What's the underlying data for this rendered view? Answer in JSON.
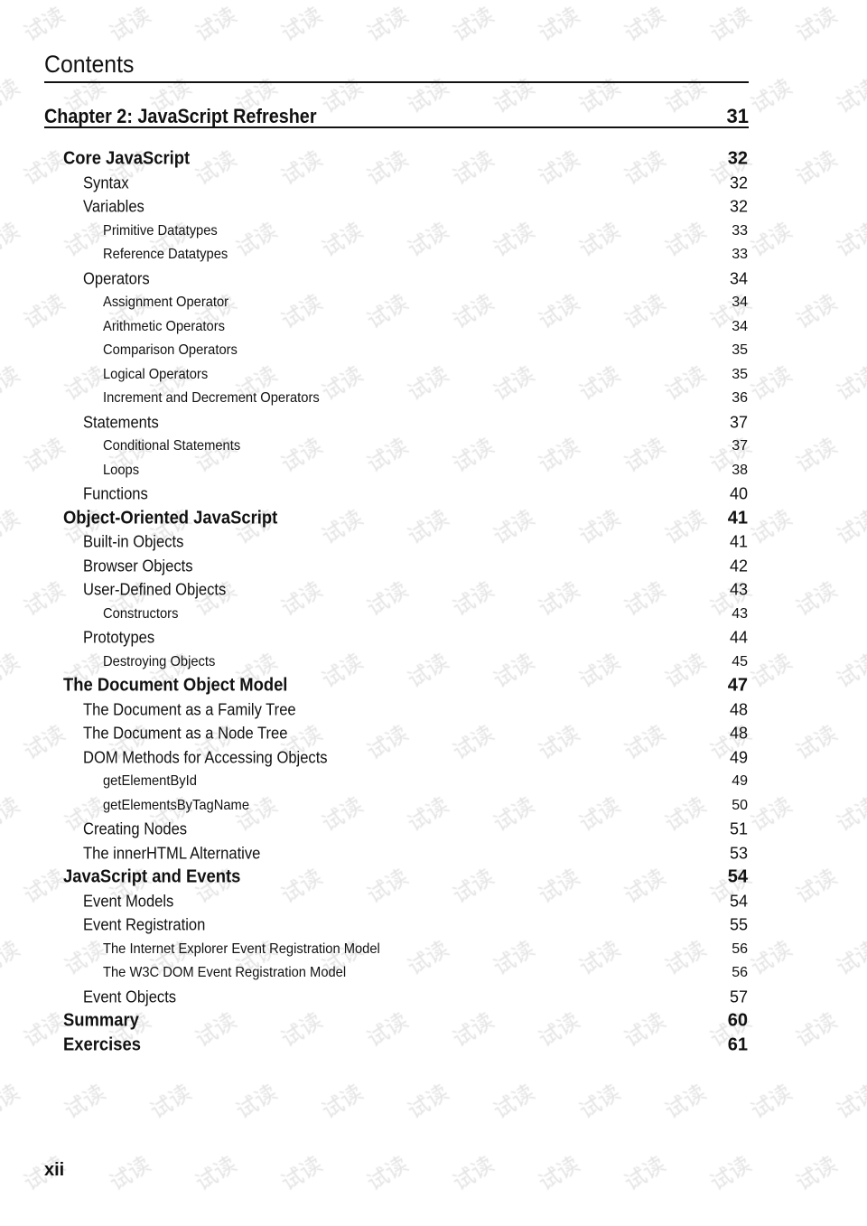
{
  "header": {
    "title": "Contents"
  },
  "chapter": {
    "title": "Chapter 2: JavaScript Refresher",
    "page": "31"
  },
  "entries": [
    {
      "level": 1,
      "title": "Core JavaScript",
      "page": "32"
    },
    {
      "level": 2,
      "title": "Syntax",
      "page": "32"
    },
    {
      "level": 2,
      "title": "Variables",
      "page": "32"
    },
    {
      "level": 3,
      "title": "Primitive Datatypes",
      "page": "33"
    },
    {
      "level": 3,
      "title": "Reference Datatypes",
      "page": "33"
    },
    {
      "level": 2,
      "title": "Operators",
      "page": "34"
    },
    {
      "level": 3,
      "title": "Assignment Operator",
      "page": "34"
    },
    {
      "level": 3,
      "title": "Arithmetic Operators",
      "page": "34"
    },
    {
      "level": 3,
      "title": "Comparison Operators",
      "page": "35"
    },
    {
      "level": 3,
      "title": "Logical Operators",
      "page": "35"
    },
    {
      "level": 3,
      "title": "Increment and Decrement Operators",
      "page": "36"
    },
    {
      "level": 2,
      "title": "Statements",
      "page": "37"
    },
    {
      "level": 3,
      "title": "Conditional Statements",
      "page": "37"
    },
    {
      "level": 3,
      "title": "Loops",
      "page": "38"
    },
    {
      "level": 2,
      "title": "Functions",
      "page": "40"
    },
    {
      "level": 1,
      "title": "Object-Oriented JavaScript",
      "page": "41"
    },
    {
      "level": 2,
      "title": "Built-in Objects",
      "page": "41"
    },
    {
      "level": 2,
      "title": "Browser Objects",
      "page": "42"
    },
    {
      "level": 2,
      "title": "User-Defined Objects",
      "page": "43"
    },
    {
      "level": 3,
      "title": "Constructors",
      "page": "43"
    },
    {
      "level": 2,
      "title": "Prototypes",
      "page": "44"
    },
    {
      "level": 3,
      "title": "Destroying Objects",
      "page": "45"
    },
    {
      "level": 1,
      "title": "The Document Object Model",
      "page": "47"
    },
    {
      "level": 2,
      "title": "The Document as a Family Tree",
      "page": "48"
    },
    {
      "level": 2,
      "title": "The Document as a Node Tree",
      "page": "48"
    },
    {
      "level": 2,
      "title": "DOM Methods for Accessing Objects",
      "page": "49"
    },
    {
      "level": 3,
      "title": "getElementById",
      "page": "49"
    },
    {
      "level": 3,
      "title": "getElementsByTagName",
      "page": "50"
    },
    {
      "level": 2,
      "title": "Creating Nodes",
      "page": "51"
    },
    {
      "level": 2,
      "title": "The innerHTML Alternative",
      "page": "53"
    },
    {
      "level": 1,
      "title": "JavaScript and Events",
      "page": "54"
    },
    {
      "level": 2,
      "title": "Event Models",
      "page": "54"
    },
    {
      "level": 2,
      "title": "Event Registration",
      "page": "55"
    },
    {
      "level": 3,
      "title": "The Internet Explorer Event Registration Model",
      "page": "56"
    },
    {
      "level": 3,
      "title": "The W3C DOM Event Registration Model",
      "page": "56"
    },
    {
      "level": 2,
      "title": "Event Objects",
      "page": "57"
    },
    {
      "level": 1,
      "title": "Summary",
      "page": "60"
    },
    {
      "level": 1,
      "title": "Exercises",
      "page": "61"
    }
  ],
  "footer": {
    "page_number": "xii"
  },
  "watermark": {
    "text": "试读",
    "color": "#e4e4e4"
  }
}
